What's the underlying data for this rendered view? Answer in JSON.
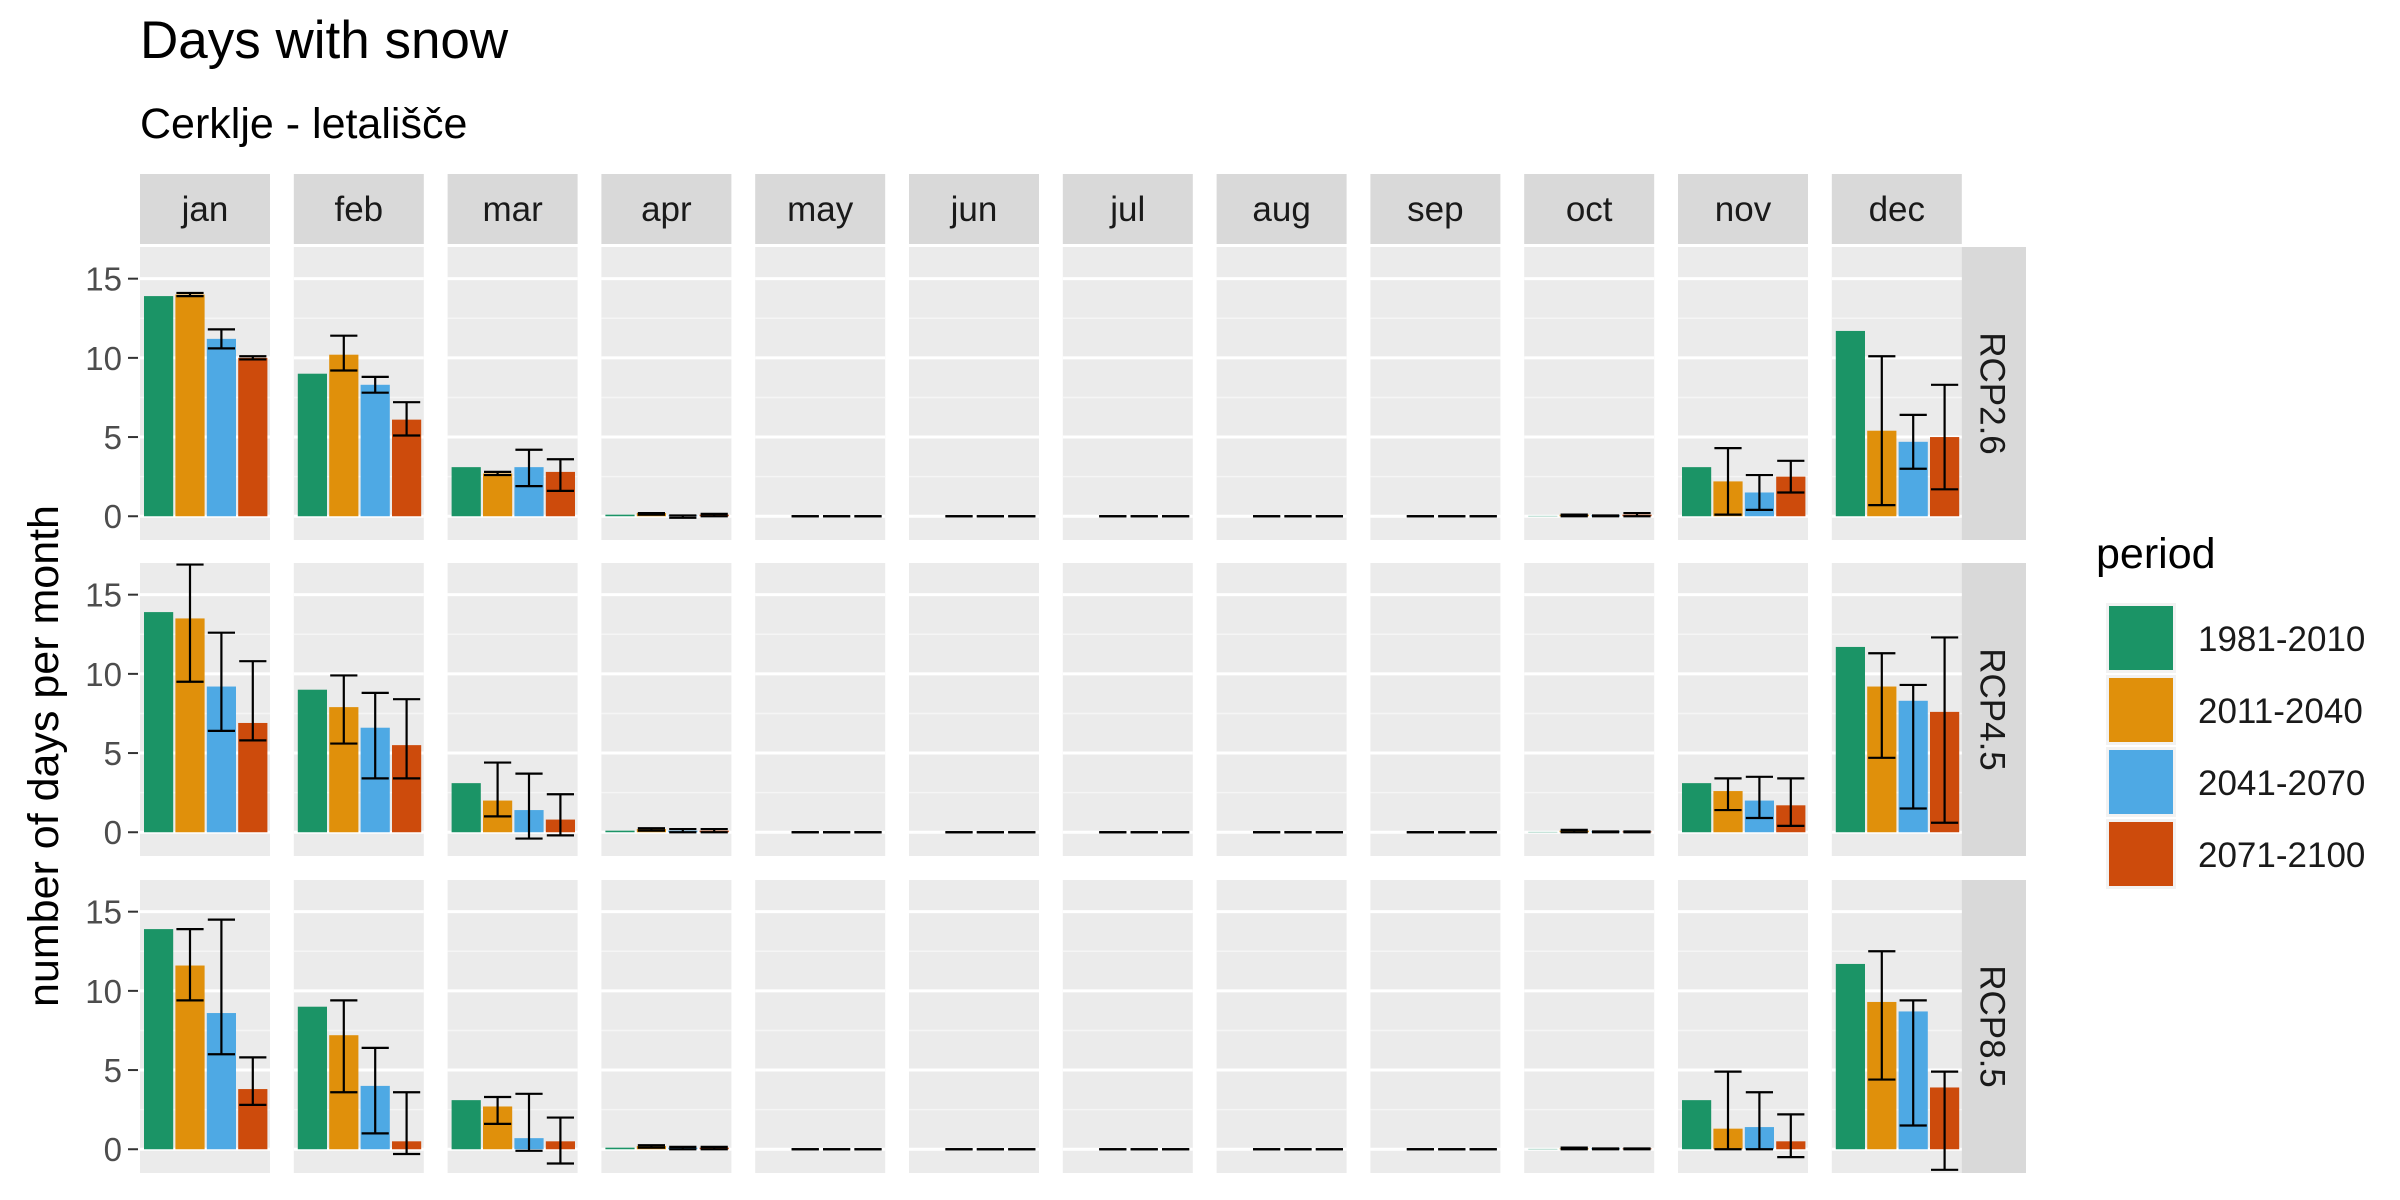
{
  "chart_data": {
    "type": "bar",
    "title": "Days with snow",
    "subtitle": "Cerklje - letališče",
    "ylabel": "number of days per month",
    "xlabel": "",
    "ylim": [
      -1.5,
      17
    ],
    "yticks": [
      0,
      5,
      10,
      15
    ],
    "grid": true,
    "legend": {
      "title": "period",
      "position": "right"
    },
    "months": [
      "jan",
      "feb",
      "mar",
      "apr",
      "may",
      "jun",
      "jul",
      "aug",
      "sep",
      "oct",
      "nov",
      "dec"
    ],
    "scenarios": [
      "RCP2.6",
      "RCP4.5",
      "RCP8.5"
    ],
    "series": [
      {
        "name": "1981-2010",
        "color": "#1b9466"
      },
      {
        "name": "2011-2040",
        "color": "#e0900b"
      },
      {
        "name": "2041-2070",
        "color": "#4ea9e4"
      },
      {
        "name": "2071-2100",
        "color": "#cd4b0c"
      }
    ],
    "values": {
      "RCP2.6": [
        [
          [
            13.9,
            null,
            null
          ],
          [
            14.0,
            13.9,
            14.1
          ],
          [
            11.2,
            10.6,
            11.8
          ],
          [
            10.0,
            9.9,
            10.1
          ]
        ],
        [
          [
            9.0,
            null,
            null
          ],
          [
            10.2,
            9.2,
            11.4
          ],
          [
            8.3,
            7.8,
            8.8
          ],
          [
            6.1,
            5.1,
            7.2
          ]
        ],
        [
          [
            3.1,
            null,
            null
          ],
          [
            2.7,
            2.6,
            2.8
          ],
          [
            3.1,
            1.9,
            4.2
          ],
          [
            2.8,
            1.6,
            3.6
          ]
        ],
        [
          [
            0.1,
            null,
            null
          ],
          [
            0.2,
            0.1,
            0.2
          ],
          [
            0.05,
            -0.1,
            0.05
          ],
          [
            0.1,
            0.0,
            0.15
          ]
        ],
        [
          [
            0.0,
            null,
            null
          ],
          [
            0.0,
            0.0,
            0.0
          ],
          [
            0.0,
            0.0,
            0.0
          ],
          [
            0.0,
            0.0,
            0.0
          ]
        ],
        [
          [
            0.0,
            null,
            null
          ],
          [
            0.0,
            0.0,
            0.0
          ],
          [
            0.0,
            0.0,
            0.0
          ],
          [
            0.0,
            0.0,
            0.0
          ]
        ],
        [
          [
            0.0,
            null,
            null
          ],
          [
            0.0,
            0.0,
            0.0
          ],
          [
            0.0,
            0.0,
            0.0
          ],
          [
            0.0,
            0.0,
            0.0
          ]
        ],
        [
          [
            0.0,
            null,
            null
          ],
          [
            0.0,
            0.0,
            0.0
          ],
          [
            0.0,
            0.0,
            0.0
          ],
          [
            0.0,
            0.0,
            0.0
          ]
        ],
        [
          [
            0.0,
            null,
            null
          ],
          [
            0.0,
            0.0,
            0.0
          ],
          [
            0.0,
            0.0,
            0.0
          ],
          [
            0.0,
            0.0,
            0.0
          ]
        ],
        [
          [
            0.02,
            null,
            null
          ],
          [
            0.1,
            0.0,
            0.1
          ],
          [
            0.05,
            0.0,
            0.05
          ],
          [
            0.1,
            0.0,
            0.2
          ]
        ],
        [
          [
            3.1,
            null,
            null
          ],
          [
            2.2,
            0.1,
            4.3
          ],
          [
            1.5,
            0.4,
            2.6
          ],
          [
            2.5,
            1.5,
            3.5
          ]
        ],
        [
          [
            11.7,
            null,
            null
          ],
          [
            5.4,
            0.7,
            10.1
          ],
          [
            4.7,
            3.0,
            6.4
          ],
          [
            5.0,
            1.7,
            8.3
          ]
        ]
      ],
      "RCP4.5": [
        [
          [
            13.9,
            null,
            null
          ],
          [
            13.5,
            9.5,
            16.9
          ],
          [
            9.2,
            6.4,
            12.6
          ],
          [
            6.9,
            5.8,
            10.8
          ]
        ],
        [
          [
            9.0,
            null,
            null
          ],
          [
            7.9,
            5.6,
            9.9
          ],
          [
            6.6,
            3.4,
            8.8
          ],
          [
            5.5,
            3.4,
            8.4
          ]
        ],
        [
          [
            3.1,
            null,
            null
          ],
          [
            2.0,
            1.0,
            4.4
          ],
          [
            1.4,
            -0.4,
            3.7
          ],
          [
            0.8,
            -0.2,
            2.4
          ]
        ],
        [
          [
            0.1,
            null,
            null
          ],
          [
            0.2,
            0.1,
            0.25
          ],
          [
            0.1,
            0.0,
            0.2
          ],
          [
            0.1,
            0.0,
            0.2
          ]
        ],
        [
          [
            0.0,
            null,
            null
          ],
          [
            0.0,
            0.0,
            0.0
          ],
          [
            0.0,
            0.0,
            0.0
          ],
          [
            0.0,
            0.0,
            0.0
          ]
        ],
        [
          [
            0.0,
            null,
            null
          ],
          [
            0.0,
            0.0,
            0.0
          ],
          [
            0.0,
            0.0,
            0.0
          ],
          [
            0.0,
            0.0,
            0.0
          ]
        ],
        [
          [
            0.0,
            null,
            null
          ],
          [
            0.0,
            0.0,
            0.0
          ],
          [
            0.0,
            0.0,
            0.0
          ],
          [
            0.0,
            0.0,
            0.0
          ]
        ],
        [
          [
            0.0,
            null,
            null
          ],
          [
            0.0,
            0.0,
            0.0
          ],
          [
            0.0,
            0.0,
            0.0
          ],
          [
            0.0,
            0.0,
            0.0
          ]
        ],
        [
          [
            0.0,
            null,
            null
          ],
          [
            0.0,
            0.0,
            0.0
          ],
          [
            0.0,
            0.0,
            0.0
          ],
          [
            0.0,
            0.0,
            0.0
          ]
        ],
        [
          [
            0.02,
            null,
            null
          ],
          [
            0.1,
            0.0,
            0.15
          ],
          [
            0.05,
            0.0,
            0.05
          ],
          [
            0.05,
            0.0,
            0.05
          ]
        ],
        [
          [
            3.1,
            null,
            null
          ],
          [
            2.6,
            1.4,
            3.4
          ],
          [
            2.0,
            0.9,
            3.5
          ],
          [
            1.7,
            0.4,
            3.4
          ]
        ],
        [
          [
            11.7,
            null,
            null
          ],
          [
            9.2,
            4.7,
            11.3
          ],
          [
            8.3,
            1.5,
            9.3
          ],
          [
            7.6,
            0.6,
            12.3
          ]
        ]
      ],
      "RCP8.5": [
        [
          [
            13.9,
            null,
            null
          ],
          [
            11.6,
            9.4,
            13.9
          ],
          [
            8.6,
            6.0,
            14.5
          ],
          [
            3.8,
            2.8,
            5.8
          ]
        ],
        [
          [
            9.0,
            null,
            null
          ],
          [
            7.2,
            3.6,
            9.4
          ],
          [
            4.0,
            1.0,
            6.4
          ],
          [
            0.5,
            -0.3,
            3.6
          ]
        ],
        [
          [
            3.1,
            null,
            null
          ],
          [
            2.7,
            1.6,
            3.3
          ],
          [
            0.7,
            -0.1,
            3.5
          ],
          [
            0.5,
            -0.9,
            2.0
          ]
        ],
        [
          [
            0.1,
            null,
            null
          ],
          [
            0.2,
            0.1,
            0.25
          ],
          [
            0.1,
            0.0,
            0.15
          ],
          [
            0.1,
            0.0,
            0.15
          ]
        ],
        [
          [
            0.0,
            null,
            null
          ],
          [
            0.0,
            0.0,
            0.0
          ],
          [
            0.0,
            0.0,
            0.0
          ],
          [
            0.0,
            0.0,
            0.0
          ]
        ],
        [
          [
            0.0,
            null,
            null
          ],
          [
            0.0,
            0.0,
            0.0
          ],
          [
            0.0,
            0.0,
            0.0
          ],
          [
            0.0,
            0.0,
            0.0
          ]
        ],
        [
          [
            0.0,
            null,
            null
          ],
          [
            0.0,
            0.0,
            0.0
          ],
          [
            0.0,
            0.0,
            0.0
          ],
          [
            0.0,
            0.0,
            0.0
          ]
        ],
        [
          [
            0.0,
            null,
            null
          ],
          [
            0.0,
            0.0,
            0.0
          ],
          [
            0.0,
            0.0,
            0.0
          ],
          [
            0.0,
            0.0,
            0.0
          ]
        ],
        [
          [
            0.0,
            null,
            null
          ],
          [
            0.0,
            0.0,
            0.0
          ],
          [
            0.0,
            0.0,
            0.0
          ],
          [
            0.0,
            0.0,
            0.0
          ]
        ],
        [
          [
            0.02,
            null,
            null
          ],
          [
            0.05,
            0.0,
            0.1
          ],
          [
            0.05,
            0.0,
            0.05
          ],
          [
            0.05,
            0.0,
            0.05
          ]
        ],
        [
          [
            3.1,
            null,
            null
          ],
          [
            1.3,
            0.0,
            4.9
          ],
          [
            1.4,
            0.0,
            3.6
          ],
          [
            0.5,
            -0.5,
            2.2
          ]
        ],
        [
          [
            11.7,
            null,
            null
          ],
          [
            9.3,
            4.4,
            12.5
          ],
          [
            8.7,
            1.5,
            9.4
          ],
          [
            3.9,
            -1.3,
            4.9
          ]
        ]
      ]
    }
  }
}
